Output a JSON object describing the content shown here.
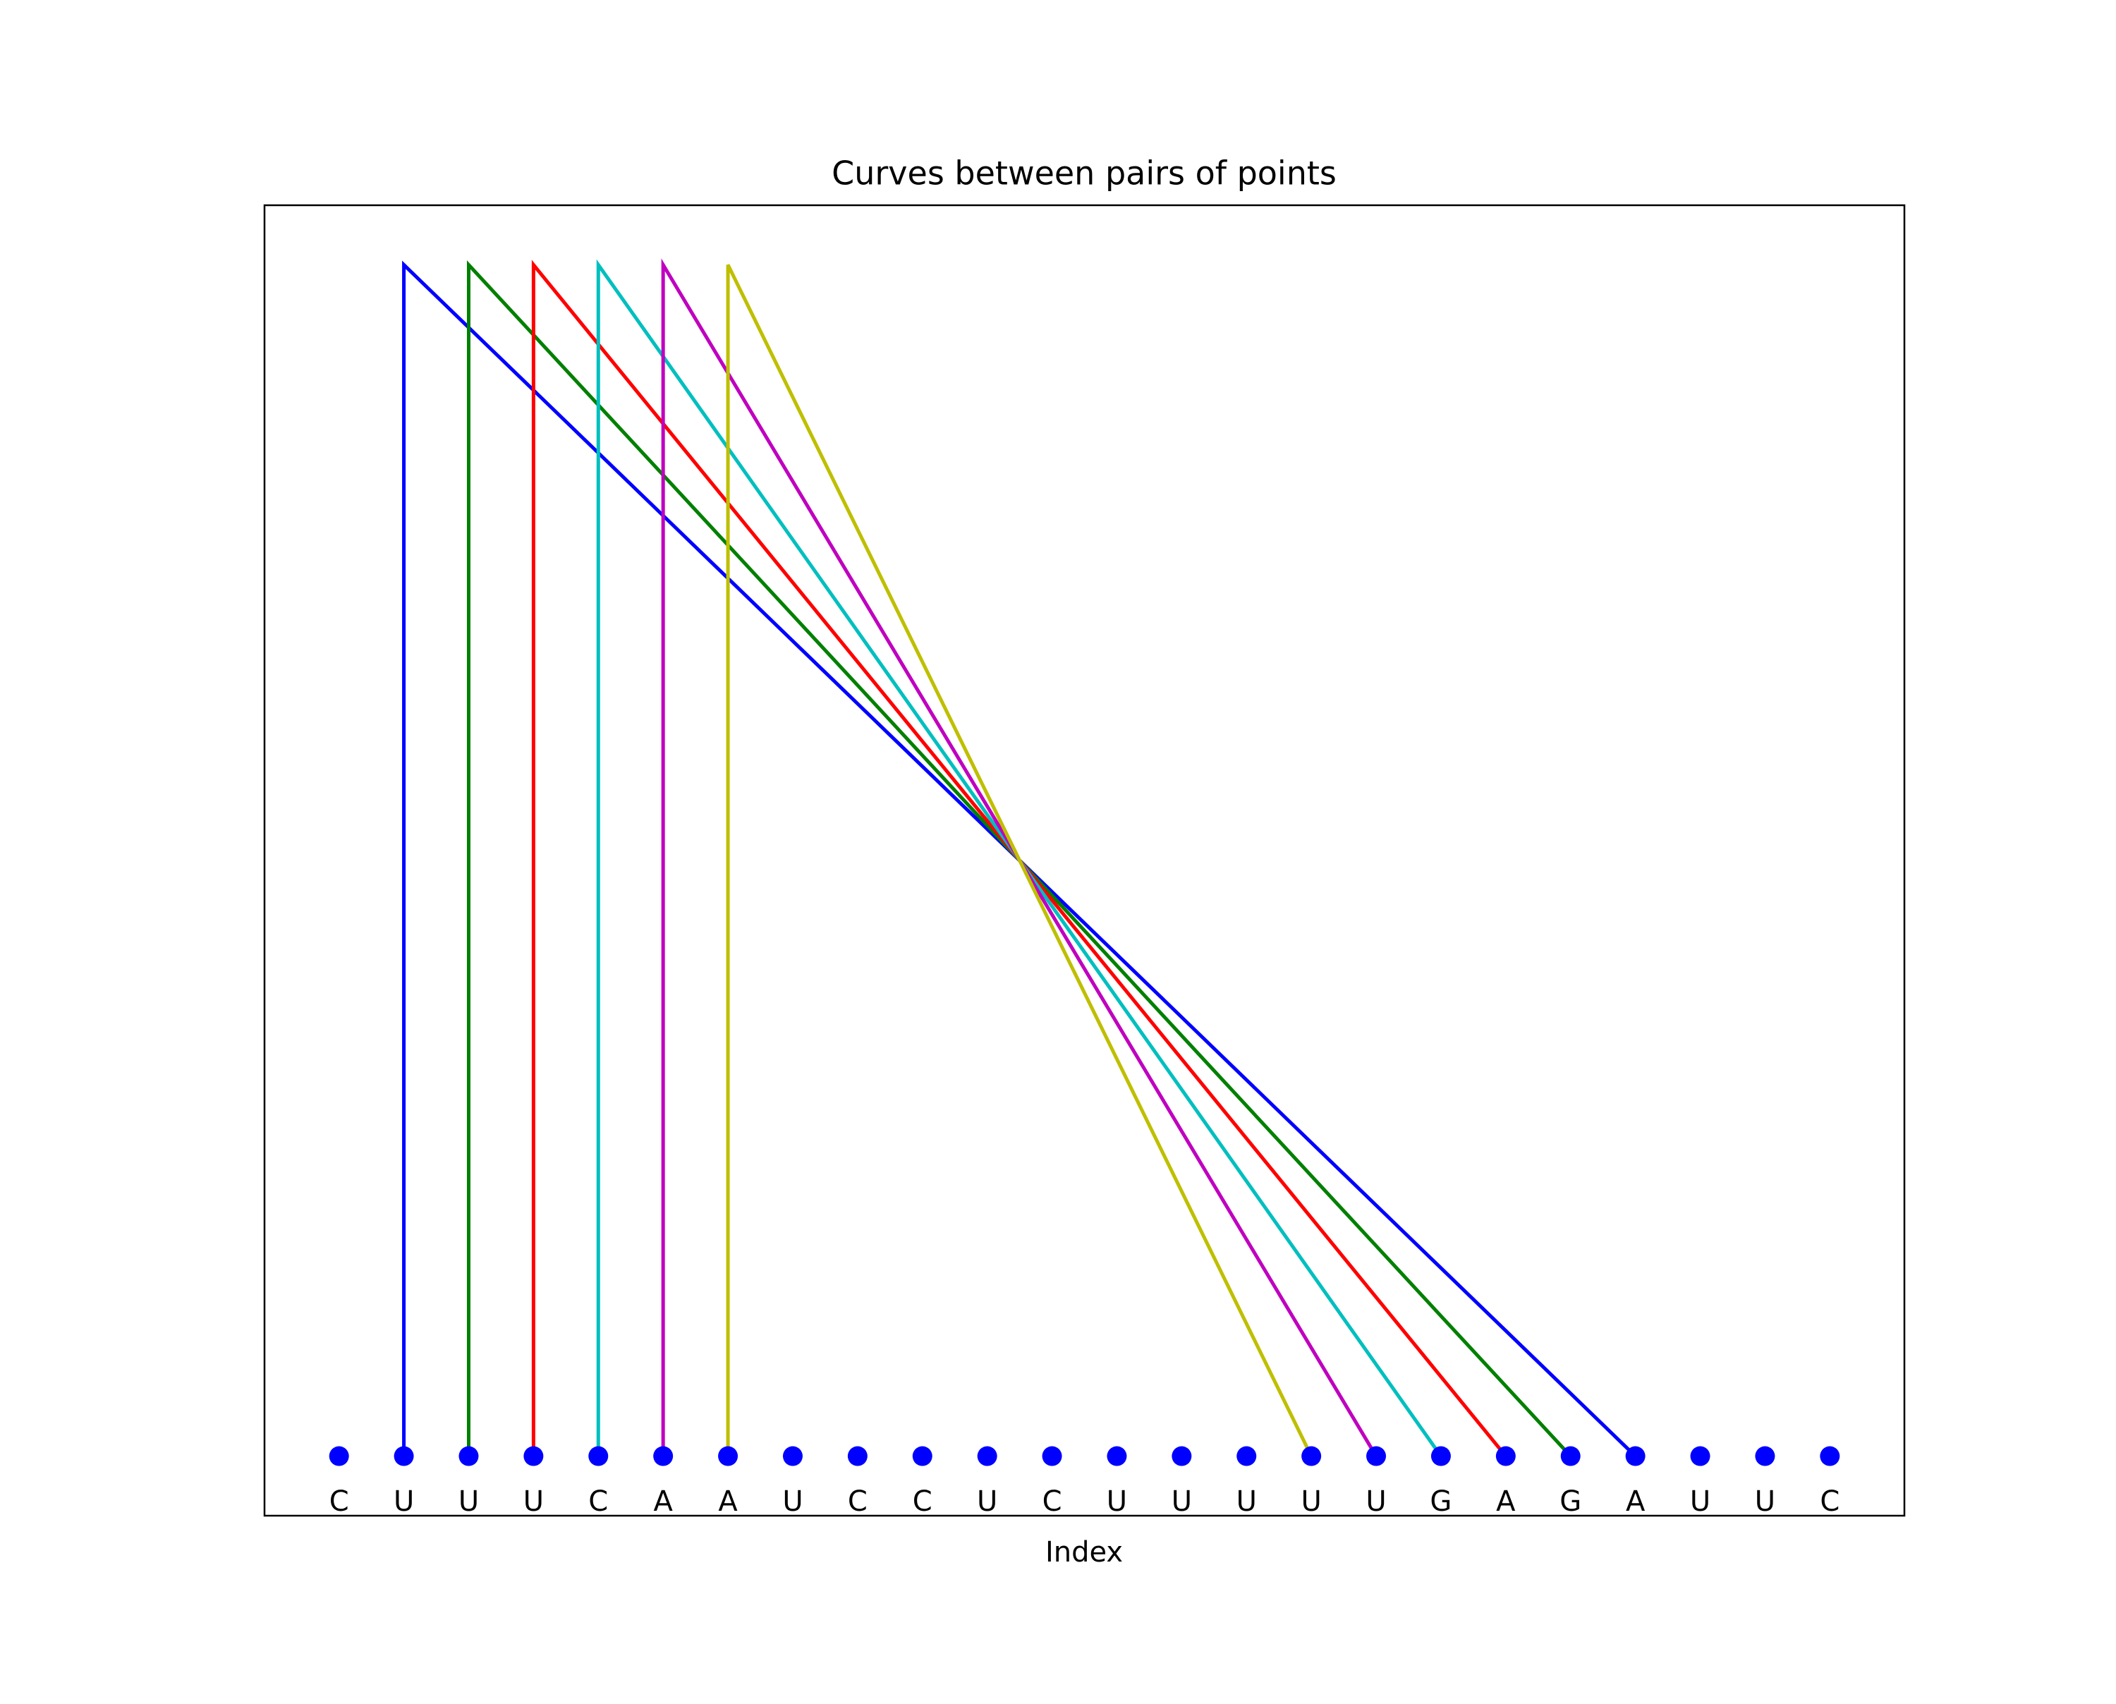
{
  "chart_data": {
    "type": "arc",
    "title": "Curves between pairs of points",
    "xlabel": "Index",
    "categories": [
      "C",
      "U",
      "U",
      "U",
      "C",
      "A",
      "A",
      "U",
      "C",
      "C",
      "U",
      "C",
      "U",
      "U",
      "U",
      "U",
      "U",
      "G",
      "A",
      "G",
      "A",
      "U",
      "U",
      "C"
    ],
    "values": [
      0,
      0,
      0,
      0,
      0,
      0,
      0,
      0,
      0,
      0,
      0,
      0,
      0,
      0,
      0,
      0,
      0,
      0,
      0,
      0,
      0,
      0,
      0,
      0
    ],
    "point_color": "#0000ff",
    "xlim": [
      -1.15,
      24.15
    ],
    "ylim": [
      -0.05,
      1.05
    ],
    "series": [
      {
        "color": "#0000ff",
        "x": [
          1,
          1,
          20
        ],
        "values": [
          0,
          1,
          0
        ]
      },
      {
        "color": "#008000",
        "x": [
          2,
          2,
          19
        ],
        "values": [
          0,
          1,
          0
        ]
      },
      {
        "color": "#ff0000",
        "x": [
          3,
          3,
          18
        ],
        "values": [
          0,
          1,
          0
        ]
      },
      {
        "color": "#00bfbf",
        "x": [
          4,
          4,
          17
        ],
        "values": [
          0,
          1,
          0
        ]
      },
      {
        "color": "#bf00bf",
        "x": [
          5,
          5,
          16
        ],
        "values": [
          0,
          1,
          0
        ]
      },
      {
        "color": "#bfbf00",
        "x": [
          6,
          6,
          15
        ],
        "values": [
          0,
          1,
          0
        ]
      }
    ]
  }
}
